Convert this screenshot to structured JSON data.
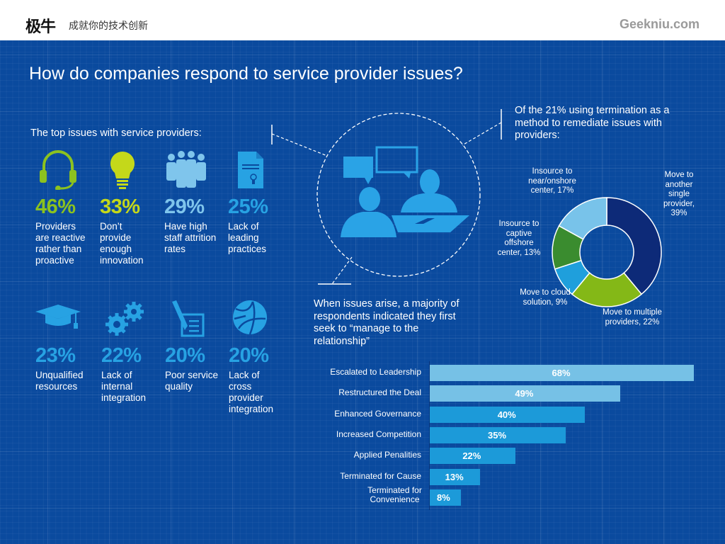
{
  "header": {
    "brand": "极牛",
    "tagline": "成就你的技术创新",
    "site": "Geekniu.com"
  },
  "title": "How do companies respond to service provider issues?",
  "issues": {
    "heading": "The top issues with service providers:",
    "items": [
      {
        "icon": "headset-icon",
        "value": "46%",
        "label": "Providers are reactive rather than proactive",
        "color": "#8cc21f"
      },
      {
        "icon": "lightbulb-icon",
        "value": "33%",
        "label": "Don’t provide enough innovation",
        "color": "#c4d81a"
      },
      {
        "icon": "people-group-icon",
        "value": "29%",
        "label": "Have high staff attrition rates",
        "color": "#7fc5ec"
      },
      {
        "icon": "certificate-document-icon",
        "value": "25%",
        "label": "Lack of leading practices",
        "color": "#27a2e3"
      },
      {
        "icon": "graduation-cap-icon",
        "value": "23%",
        "label": "Unqualified resources",
        "color": "#27a2e3"
      },
      {
        "icon": "gears-icon",
        "value": "22%",
        "label": "Lack of internal integration",
        "color": "#27a2e3"
      },
      {
        "icon": "pen-contract-icon",
        "value": "20%",
        "label": "Poor service quality",
        "color": "#27a2e3"
      },
      {
        "icon": "globe-network-icon",
        "value": "20%",
        "label": "Lack of cross provider integration",
        "color": "#27a2e3"
      }
    ]
  },
  "center_icon": "meeting-conversation-icon",
  "manage_callout": "When issues arise, a majority of respondents indicated they first seek to “manage to the relationship”",
  "termination_callout": "Of the 21% using termination as a method to remediate issues with providers:",
  "chart_data": [
    {
      "type": "pie",
      "title": "Of the 21% using termination as a method to remediate issues with providers:",
      "donut": true,
      "slices": [
        {
          "label": "Move to another single provider, 39%",
          "name": "Move to another single provider",
          "value": 39,
          "color": "#0d2a78"
        },
        {
          "label": "Move to multiple providers, 22%",
          "name": "Move to multiple providers",
          "value": 22,
          "color": "#84b817"
        },
        {
          "label": "Move to cloud solution, 9%",
          "name": "Move to cloud solution",
          "value": 9,
          "color": "#1f9fdc"
        },
        {
          "label": "Insource to captive offshore center, 13%",
          "name": "Insource to captive offshore center",
          "value": 13,
          "color": "#3a8c2f"
        },
        {
          "label": "Insource to near/onshore center, 17%",
          "name": "Insource to near/onshore center",
          "value": 17,
          "color": "#78c3ea"
        }
      ],
      "start_angle": "12 o'clock, clockwise"
    },
    {
      "type": "bar",
      "orientation": "horizontal",
      "title": "When issues arise, a majority of respondents indicated they first seek to “manage to the relationship”",
      "categories": [
        "Escalated to Leadership",
        "Restructured the Deal",
        "Enhanced Governance",
        "Increased Competition",
        "Applied Penalities",
        "Terminated for Cause",
        "Terminated for Convenience"
      ],
      "values": [
        68,
        49,
        40,
        35,
        22,
        13,
        8
      ],
      "value_labels": [
        "68%",
        "49%",
        "40%",
        "35%",
        "22%",
        "13%",
        "8%"
      ],
      "colors": [
        "#76c1e6",
        "#76c1e6",
        "#1c9ad9",
        "#1c9ad9",
        "#1c9ad9",
        "#1c9ad9",
        "#1c9ad9"
      ],
      "xlim": [
        0,
        68
      ],
      "xlabel": "",
      "ylabel": "",
      "grid": false
    }
  ]
}
